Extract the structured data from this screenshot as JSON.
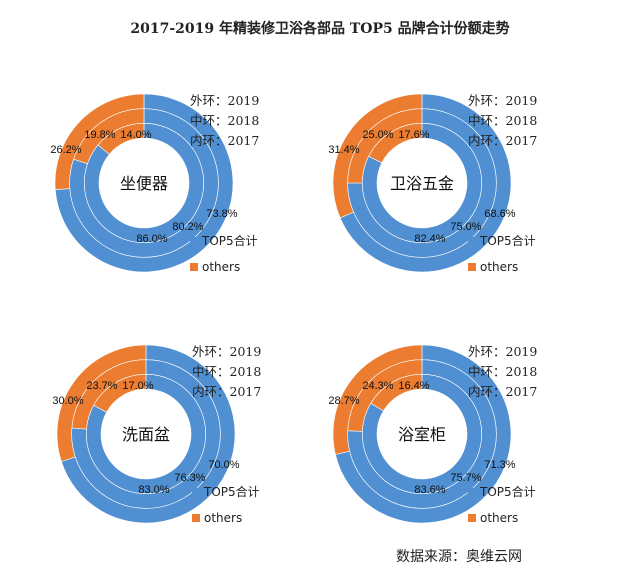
{
  "title": "2017-2019 年精装修卫浴各部品 TOP5 品牌合计份额走势",
  "source": "数据来源：奥维云网",
  "colors": {
    "top5": "#4f8fd2",
    "others": "#ec7c30"
  },
  "chart_data": [
    {
      "type": "pie",
      "subtype": "multi-ring donut",
      "center_label": "坐便器",
      "rings": [
        "外环：2019",
        "中环：2018",
        "内环：2017"
      ],
      "legend": [
        "TOP5合计",
        "others"
      ],
      "series": [
        {
          "year": "2019",
          "ring": "outer",
          "values": [
            73.8,
            26.2
          ]
        },
        {
          "year": "2018",
          "ring": "middle",
          "values": [
            80.2,
            19.8
          ]
        },
        {
          "year": "2017",
          "ring": "inner",
          "values": [
            86.0,
            14.0
          ]
        }
      ]
    },
    {
      "type": "pie",
      "subtype": "multi-ring donut",
      "center_label": "卫浴五金",
      "rings": [
        "外环：2019",
        "中环：2018",
        "内环：2017"
      ],
      "legend": [
        "TOP5合计",
        "others"
      ],
      "series": [
        {
          "year": "2019",
          "ring": "outer",
          "values": [
            68.6,
            31.4
          ]
        },
        {
          "year": "2018",
          "ring": "middle",
          "values": [
            75.0,
            25.0
          ]
        },
        {
          "year": "2017",
          "ring": "inner",
          "values": [
            82.4,
            17.6
          ]
        }
      ]
    },
    {
      "type": "pie",
      "subtype": "multi-ring donut",
      "center_label": "洗面盆",
      "rings": [
        "外环：2019",
        "中环：2018",
        "内环：2017"
      ],
      "legend": [
        "TOP5合计",
        "others"
      ],
      "series": [
        {
          "year": "2019",
          "ring": "outer",
          "values": [
            70.0,
            30.0
          ]
        },
        {
          "year": "2018",
          "ring": "middle",
          "values": [
            76.3,
            23.7
          ]
        },
        {
          "year": "2017",
          "ring": "inner",
          "values": [
            83.0,
            17.0
          ]
        }
      ]
    },
    {
      "type": "pie",
      "subtype": "multi-ring donut",
      "center_label": "浴室柜",
      "rings": [
        "外环：2019",
        "中环：2018",
        "内环：2017"
      ],
      "legend": [
        "TOP5合计",
        "others"
      ],
      "series": [
        {
          "year": "2019",
          "ring": "outer",
          "values": [
            71.3,
            28.7
          ]
        },
        {
          "year": "2018",
          "ring": "middle",
          "values": [
            75.7,
            24.3
          ]
        },
        {
          "year": "2017",
          "ring": "inner",
          "values": [
            83.6,
            16.4
          ]
        }
      ]
    }
  ]
}
